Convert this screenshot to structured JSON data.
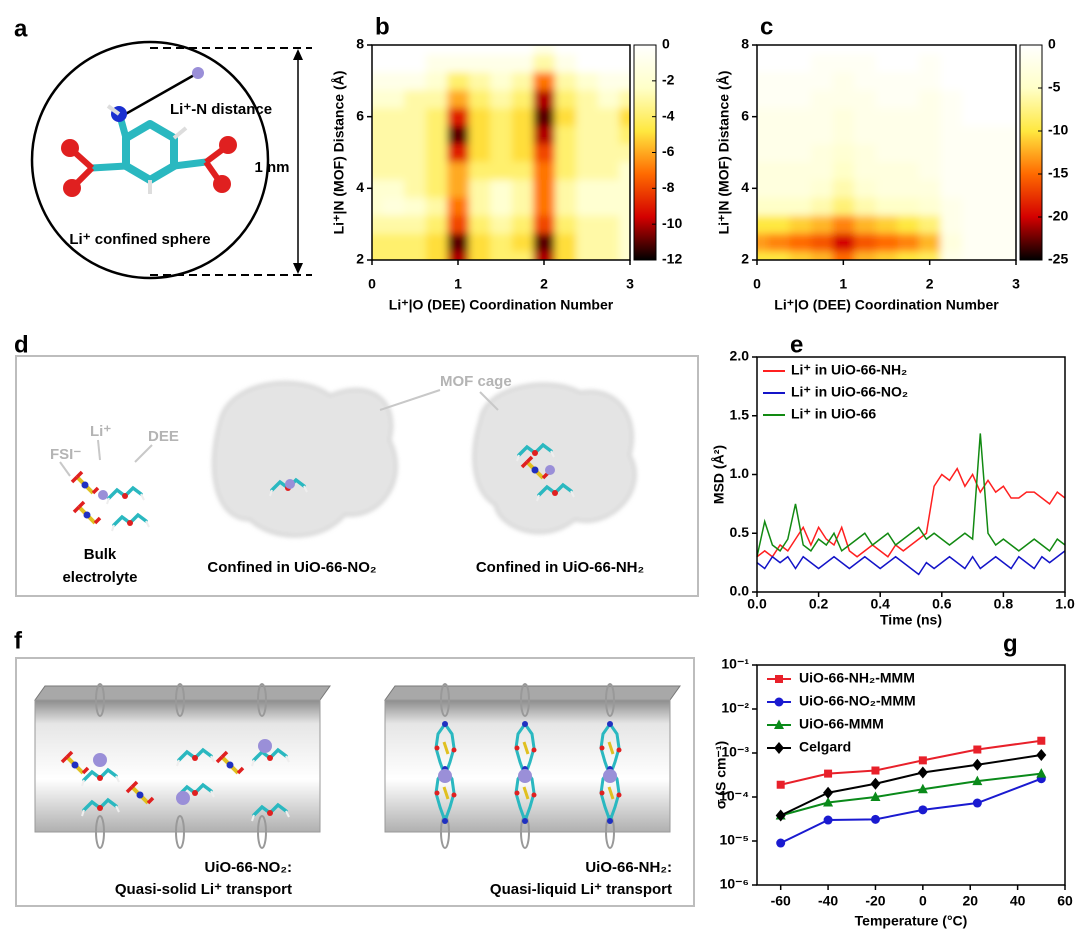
{
  "panels": {
    "a": {
      "panel_label": "a",
      "distance_label": "Li⁺-N distance",
      "scale_label": "1 nm",
      "sphere_label": "Li⁺ confined sphere"
    },
    "d": {
      "panel_label": "d",
      "fsi_label": "FSI⁻",
      "li_label": "Li⁺",
      "dee_label": "DEE",
      "cage_label": "MOF cage",
      "bulk_lines": [
        "Bulk",
        "electrolyte"
      ],
      "no2_label": "Confined in UiO-66-NO₂",
      "nh2_label": "Confined in UiO-66-NH₂"
    },
    "f": {
      "panel_label": "f",
      "left_lines": [
        "UiO-66-NO₂:",
        "Quasi-solid Li⁺ transport"
      ],
      "right_lines": [
        "UiO-66-NH₂:",
        "Quasi-liquid Li⁺ transport"
      ]
    }
  },
  "chart_data": [
    {
      "type": "heatmap",
      "panel_label": "b",
      "x_label": "Li⁺|O (DEE) Coordination Number",
      "y_label": "Li⁺|N (MOF) Distance (Å)",
      "xlim": [
        0,
        3
      ],
      "xticks": [
        0,
        1,
        2,
        3
      ],
      "ylim": [
        2,
        8
      ],
      "yticks": [
        2,
        4,
        6,
        8
      ],
      "zlim": [
        -12,
        0
      ],
      "zticks": [
        0,
        -2,
        -4,
        -6,
        -8,
        -10,
        -12
      ],
      "colormap": [
        "#000000",
        "#d40000",
        "#ff6a00",
        "#ffe840",
        "#ffffc8",
        "#ffffff"
      ],
      "x": [
        0,
        0.25,
        0.5,
        0.75,
        1,
        1.25,
        1.5,
        1.75,
        2,
        2.25,
        2.5,
        2.75,
        3
      ],
      "y": [
        2,
        2.5,
        3,
        3.5,
        4,
        4.5,
        5,
        5.5,
        6,
        6.5,
        7,
        7.5,
        8
      ],
      "z": [
        [
          -4,
          -4,
          -4,
          -5,
          -10,
          -5,
          -4,
          -4,
          -10,
          -5,
          -3,
          -3,
          -2
        ],
        [
          -4,
          -4,
          -4,
          -5,
          -11,
          -5,
          -4,
          -5,
          -11,
          -5,
          -3,
          -3,
          -2
        ],
        [
          -3,
          -3,
          -3,
          -4,
          -8,
          -4,
          -3,
          -4,
          -8,
          -4,
          -3,
          -3,
          -2
        ],
        [
          -2,
          -1.5,
          -2,
          -3,
          -7,
          -3,
          -2,
          -3,
          -7,
          -3,
          -2,
          -2,
          -2
        ],
        [
          -2,
          -2,
          -3,
          -4,
          -6,
          -3,
          -2,
          -3,
          -7,
          -3,
          -2,
          -2,
          -2
        ],
        [
          -3,
          -3,
          -3,
          -4,
          -6,
          -4,
          -4,
          -4,
          -7,
          -4,
          -3,
          -3,
          -2
        ],
        [
          -3,
          -3,
          -3,
          -4,
          -9,
          -5,
          -4,
          -5,
          -8,
          -4,
          -3,
          -3,
          -3
        ],
        [
          -3,
          -3,
          -3,
          -4,
          -11,
          -5,
          -4,
          -5,
          -10,
          -4,
          -3,
          -3,
          -4
        ],
        [
          -3,
          -3,
          -3,
          -4,
          -9,
          -5,
          -4,
          -5,
          -11,
          -5,
          -3,
          -3,
          -5
        ],
        [
          -2,
          -2,
          -3,
          -3,
          -6,
          -4,
          -3,
          -4,
          -10,
          -4,
          -3,
          -2,
          -3
        ],
        [
          -1,
          -1,
          -1,
          -2,
          -4,
          -3,
          -2,
          -3,
          -7,
          -3,
          -2,
          -1,
          -1
        ],
        [
          0,
          0,
          0,
          -1,
          -1,
          -1,
          -1,
          -1,
          -3,
          -1,
          0,
          0,
          0
        ],
        [
          0,
          0,
          0,
          0,
          0,
          0,
          0,
          0,
          -1,
          0,
          0,
          0,
          0
        ]
      ]
    },
    {
      "type": "heatmap",
      "panel_label": "c",
      "x_label": "Li⁺|O (DEE) Coordination Number",
      "y_label": "Li⁺|N (MOF) Distance (Å)",
      "xlim": [
        0,
        3
      ],
      "xticks": [
        0,
        1,
        2,
        3
      ],
      "ylim": [
        2,
        8
      ],
      "yticks": [
        2,
        4,
        6,
        8
      ],
      "zlim": [
        -25,
        0
      ],
      "zticks": [
        0,
        -5,
        -10,
        -15,
        -20,
        -25
      ],
      "colormap": [
        "#000000",
        "#d40000",
        "#ff6a00",
        "#ffe840",
        "#ffffc8",
        "#ffffff"
      ],
      "x": [
        0,
        0.25,
        0.5,
        0.75,
        1,
        1.25,
        1.5,
        1.75,
        2,
        2.25,
        2.5,
        2.75,
        3
      ],
      "y": [
        2,
        2.5,
        3,
        3.5,
        4,
        4.5,
        5,
        5.5,
        6,
        6.5,
        7,
        7.5,
        8
      ],
      "z": [
        [
          -10,
          -10,
          -11,
          -12,
          -15,
          -12,
          -11,
          -10,
          -9,
          -2,
          -1,
          -1,
          -1
        ],
        [
          -13,
          -14,
          -15,
          -16,
          -20,
          -16,
          -15,
          -14,
          -12,
          -3,
          -1,
          -1,
          -1
        ],
        [
          -10,
          -10,
          -11,
          -12,
          -14,
          -12,
          -11,
          -10,
          -8,
          -2,
          -1,
          -1,
          -1
        ],
        [
          -5,
          -5,
          -5,
          -6,
          -8,
          -6,
          -5,
          -5,
          -4,
          -2,
          -1,
          -1,
          -1
        ],
        [
          -3,
          -3,
          -3,
          -4,
          -6,
          -4,
          -3,
          -3,
          -3,
          -1,
          -1,
          -1,
          -1
        ],
        [
          -3,
          -3,
          -3,
          -3,
          -5,
          -3,
          -3,
          -3,
          -2,
          -1,
          -1,
          -1,
          -1
        ],
        [
          -2,
          -2,
          -2,
          -3,
          -4,
          -3,
          -2,
          -2,
          -2,
          -1,
          -1,
          -1,
          -1
        ],
        [
          -2,
          -2,
          -2,
          -2,
          -3,
          -2,
          -2,
          -2,
          -2,
          -1,
          -1,
          -1,
          -1
        ],
        [
          -2,
          -2,
          -2,
          -2,
          -3,
          -2,
          -2,
          -2,
          -2,
          -1,
          0,
          0,
          0
        ],
        [
          -1,
          -1,
          -1,
          -2,
          -2,
          -2,
          -1,
          -1,
          -2,
          -1,
          0,
          0,
          0
        ],
        [
          -1,
          -1,
          -1,
          -1,
          -2,
          -1,
          -1,
          -1,
          -1,
          0,
          0,
          0,
          0
        ],
        [
          0,
          0,
          0,
          -1,
          -1,
          -1,
          0,
          0,
          -1,
          0,
          0,
          0,
          0
        ],
        [
          0,
          0,
          0,
          0,
          0,
          0,
          0,
          0,
          0,
          0,
          0,
          0,
          0
        ]
      ]
    },
    {
      "type": "line",
      "panel_label": "e",
      "x_label": "Time (ns)",
      "y_label": "MSD (Å²)",
      "xlim": [
        0,
        1
      ],
      "xticks": [
        {
          "value": 0,
          "label": "0.0"
        },
        0.2,
        0.4,
        0.6,
        0.8,
        {
          "value": 1,
          "label": "1.0"
        }
      ],
      "ylim": [
        0,
        2
      ],
      "yticks": [
        {
          "value": 0,
          "label": "0.0"
        },
        0.5,
        {
          "value": 1,
          "label": "1.0"
        },
        1.5,
        {
          "value": 2,
          "label": "2.0"
        }
      ],
      "x": [
        0,
        0.025,
        0.05,
        0.075,
        0.1,
        0.125,
        0.15,
        0.175,
        0.2,
        0.225,
        0.25,
        0.275,
        0.3,
        0.325,
        0.35,
        0.375,
        0.4,
        0.425,
        0.45,
        0.475,
        0.5,
        0.525,
        0.55,
        0.575,
        0.6,
        0.625,
        0.65,
        0.675,
        0.7,
        0.725,
        0.75,
        0.775,
        0.8,
        0.825,
        0.85,
        0.875,
        0.9,
        0.925,
        0.95,
        0.975,
        1
      ],
      "series": [
        {
          "name": "Li⁺ in UiO-66-NH₂",
          "color": "#ff2020",
          "values": [
            0.3,
            0.35,
            0.3,
            0.4,
            0.35,
            0.45,
            0.55,
            0.4,
            0.55,
            0.45,
            0.4,
            0.55,
            0.35,
            0.3,
            0.35,
            0.4,
            0.35,
            0.3,
            0.4,
            0.35,
            0.4,
            0.45,
            0.5,
            0.9,
            1.0,
            0.95,
            1.05,
            0.9,
            1.0,
            0.85,
            0.95,
            0.85,
            0.9,
            0.8,
            0.8,
            0.85,
            0.85,
            0.8,
            0.75,
            0.85,
            0.8
          ]
        },
        {
          "name": "Li⁺ in UiO-66-NO₂",
          "color": "#1414c8",
          "values": [
            0.25,
            0.2,
            0.3,
            0.25,
            0.3,
            0.2,
            0.3,
            0.25,
            0.2,
            0.25,
            0.3,
            0.25,
            0.2,
            0.25,
            0.3,
            0.25,
            0.2,
            0.25,
            0.3,
            0.25,
            0.2,
            0.15,
            0.25,
            0.2,
            0.25,
            0.3,
            0.25,
            0.2,
            0.3,
            0.2,
            0.25,
            0.3,
            0.25,
            0.2,
            0.3,
            0.25,
            0.2,
            0.3,
            0.25,
            0.3,
            0.35
          ]
        },
        {
          "name": "Li⁺ in UiO-66",
          "color": "#128a12",
          "values": [
            0.3,
            0.6,
            0.4,
            0.35,
            0.45,
            0.75,
            0.4,
            0.35,
            0.45,
            0.4,
            0.5,
            0.35,
            0.4,
            0.45,
            0.5,
            0.4,
            0.45,
            0.5,
            0.4,
            0.45,
            0.5,
            0.55,
            0.45,
            0.5,
            0.45,
            0.4,
            0.45,
            0.5,
            0.45,
            1.35,
            0.5,
            0.4,
            0.45,
            0.4,
            0.35,
            0.4,
            0.45,
            0.4,
            0.35,
            0.45,
            0.4
          ]
        }
      ]
    },
    {
      "type": "marker_line",
      "panel_label": "g",
      "x_label": "Temperature (°C)",
      "y_label": "σ (S cm⁻¹)",
      "log_y": true,
      "xlim": [
        -70,
        60
      ],
      "xticks": [
        -60,
        -40,
        -20,
        0,
        20,
        40,
        60
      ],
      "ylim": [
        1e-06,
        0.1
      ],
      "yticks": [
        {
          "value": 1e-06,
          "label": "10⁻⁶"
        },
        {
          "value": 1e-05,
          "label": "10⁻⁵"
        },
        {
          "value": 0.0001,
          "label": "10⁻⁴"
        },
        {
          "value": 0.001,
          "label": "10⁻³"
        },
        {
          "value": 0.01,
          "label": "10⁻²"
        },
        {
          "value": 0.1,
          "label": "10⁻¹"
        }
      ],
      "x": [
        -60,
        -40,
        -20,
        0,
        23,
        50
      ],
      "series": [
        {
          "name": "UiO-66-NH₂-MMM",
          "color": "#e8202a",
          "marker": "square",
          "values": [
            0.00019,
            0.00034,
            0.0004,
            0.00068,
            0.0012,
            0.0019
          ]
        },
        {
          "name": "UiO-66-NO₂-MMM",
          "color": "#1a1ad0",
          "marker": "circle",
          "values": [
            9e-06,
            3e-05,
            3.1e-05,
            5.1e-05,
            7.3e-05,
            0.00026
          ]
        },
        {
          "name": "UiO-66-MMM",
          "color": "#0a8a1a",
          "marker": "triangle",
          "values": [
            3.8e-05,
            7.5e-05,
            0.0001,
            0.00015,
            0.00023,
            0.00034
          ]
        },
        {
          "name": "Celgard",
          "color": "#000000",
          "marker": "diamond",
          "values": [
            3.8e-05,
            0.000125,
            0.0002,
            0.00036,
            0.00054,
            0.0009
          ]
        }
      ]
    }
  ]
}
